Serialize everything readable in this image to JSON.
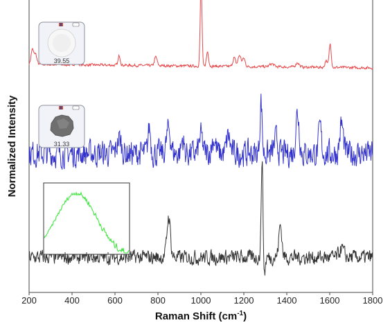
{
  "chart_data": {
    "type": "line",
    "xlabel": "Raman Shift (cm",
    "xlabel_sup": "-1",
    "xlabel_suffix": ")",
    "ylabel": "Normalized Intensity",
    "xlim": [
      200,
      1800
    ],
    "x_ticks": [
      200,
      400,
      600,
      800,
      1000,
      1200,
      1400,
      1600,
      1800
    ],
    "grid": false,
    "series": [
      {
        "color": "#e8474a",
        "baseline": 0.78,
        "noise": 0.004,
        "peaks": [
          [
            215,
            0.05,
            6
          ],
          [
            230,
            0.035,
            6
          ],
          [
            420,
            0.004,
            10
          ],
          [
            620,
            0.033,
            5
          ],
          [
            790,
            0.03,
            6
          ],
          [
            1001,
            0.3,
            4
          ],
          [
            1031,
            0.05,
            5
          ],
          [
            1155,
            0.03,
            6
          ],
          [
            1180,
            0.038,
            7
          ],
          [
            1200,
            0.028,
            6
          ],
          [
            1330,
            0.01,
            10
          ],
          [
            1450,
            0.015,
            8
          ],
          [
            1583,
            0.025,
            5
          ],
          [
            1602,
            0.08,
            5
          ]
        ],
        "slope": -0.012
      },
      {
        "color": "#3333cc",
        "baseline": 0.475,
        "noise": 0.04,
        "peaks": [
          [
            620,
            0.05,
            10
          ],
          [
            760,
            0.09,
            6
          ],
          [
            850,
            0.085,
            9
          ],
          [
            915,
            0.05,
            6
          ],
          [
            1000,
            0.06,
            8
          ],
          [
            1060,
            0.05,
            9
          ],
          [
            1128,
            0.06,
            8
          ],
          [
            1280,
            0.18,
            5
          ],
          [
            1350,
            0.05,
            8
          ],
          [
            1450,
            0.14,
            8
          ],
          [
            1555,
            0.09,
            6
          ],
          [
            1655,
            0.1,
            8
          ]
        ],
        "slope": 0.0
      },
      {
        "color": "#333333",
        "baseline": 0.12,
        "noise": 0.022,
        "peaks": [
          [
            850,
            0.14,
            8
          ],
          [
            1285,
            0.35,
            4
          ],
          [
            1370,
            0.11,
            7
          ],
          [
            1655,
            0.03,
            10
          ]
        ],
        "dips": [
          [
            1295,
            0.06,
            5
          ]
        ],
        "slope": 0.0
      }
    ],
    "insets": [
      {
        "kind": "thumbnail",
        "value": "39.55",
        "particle": "white"
      },
      {
        "kind": "thumbnail",
        "value": "31.33",
        "particle": "gray"
      },
      {
        "kind": "mini-spectrum",
        "color": "#33e633",
        "description_hidden": true
      }
    ]
  }
}
